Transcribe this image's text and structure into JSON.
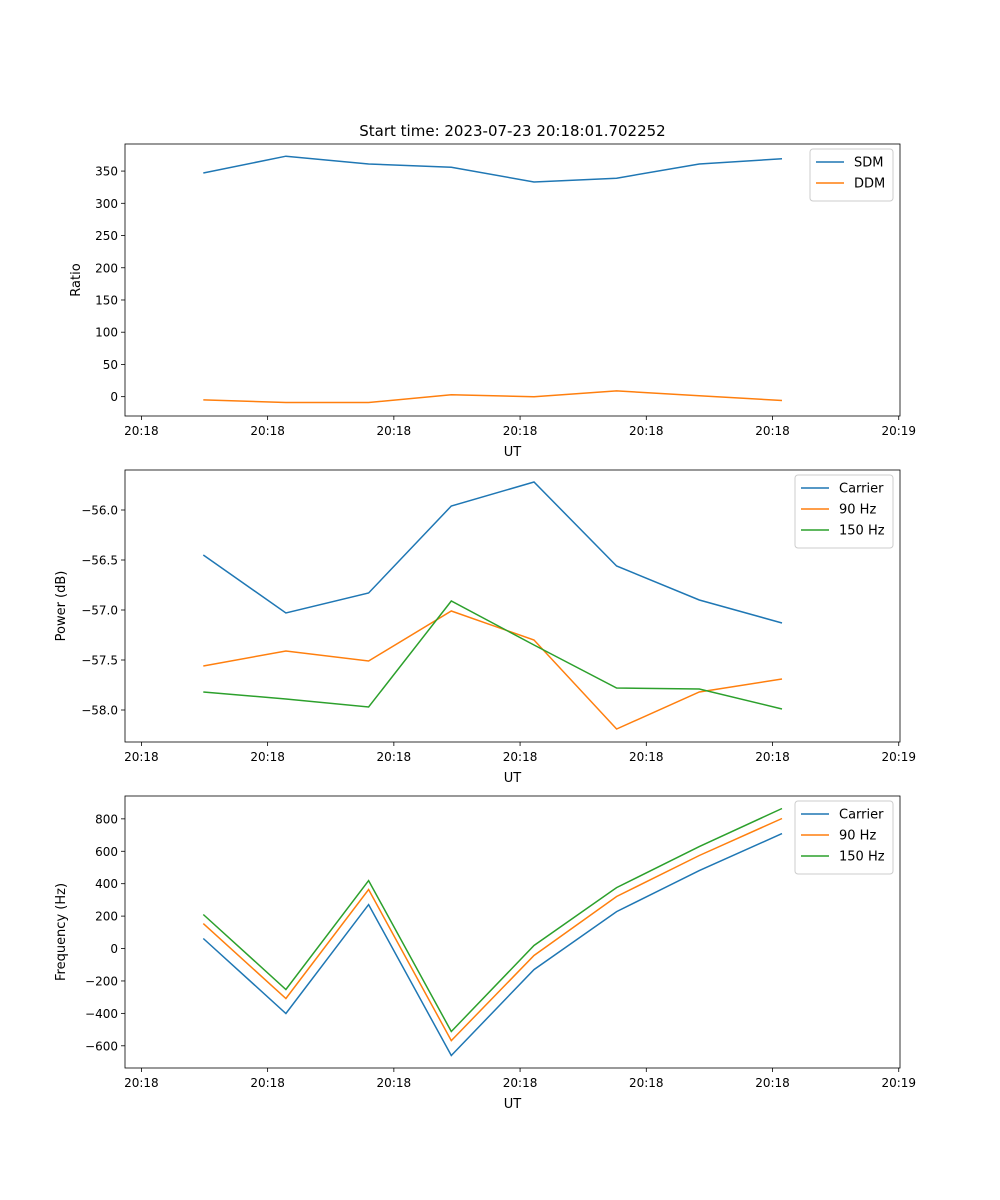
{
  "chart_data": [
    {
      "type": "line",
      "title": "Start time: 2023-07-23 20:18:01.702252",
      "xlabel": "UT",
      "ylabel": "Ratio",
      "x": [
        4.9,
        11.45,
        18.0,
        24.55,
        31.1,
        37.65,
        44.2,
        50.75
      ],
      "xlim": [
        -1.3,
        60.1
      ],
      "xticks": [
        0,
        10,
        20,
        30,
        40,
        50,
        60
      ],
      "xtick_labels": [
        "20:18",
        "20:18",
        "20:18",
        "20:18",
        "20:18",
        "20:18",
        "20:19"
      ],
      "ylim": [
        -30,
        392
      ],
      "yticks": [
        0,
        50,
        100,
        150,
        200,
        250,
        300,
        350
      ],
      "ytick_labels": [
        "0",
        "50",
        "100",
        "150",
        "200",
        "250",
        "300",
        "350"
      ],
      "legend": "top-right",
      "series": [
        {
          "name": "SDM",
          "color": "#1f77b4",
          "values": [
            347,
            373,
            361,
            356,
            333,
            339,
            361,
            369
          ]
        },
        {
          "name": "DDM",
          "color": "#ff7f0e",
          "values": [
            -5,
            -9,
            -9,
            3,
            0,
            9,
            1.5,
            -6
          ]
        }
      ]
    },
    {
      "type": "line",
      "title": "",
      "xlabel": "UT",
      "ylabel": "Power (dB)",
      "x": [
        4.9,
        11.45,
        18.0,
        24.55,
        31.1,
        37.65,
        44.2,
        50.75
      ],
      "xlim": [
        -1.3,
        60.1
      ],
      "xticks": [
        0,
        10,
        20,
        30,
        40,
        50,
        60
      ],
      "xtick_labels": [
        "20:18",
        "20:18",
        "20:18",
        "20:18",
        "20:18",
        "20:18",
        "20:19"
      ],
      "ylim": [
        -58.32,
        -55.6
      ],
      "yticks": [
        -58.0,
        -57.5,
        -57.0,
        -56.5,
        -56.0
      ],
      "ytick_labels": [
        "−58.0",
        "−57.5",
        "−57.0",
        "−56.5",
        "−56.0"
      ],
      "legend": "top-right",
      "series": [
        {
          "name": "Carrier",
          "color": "#1f77b4",
          "values": [
            -56.45,
            -57.03,
            -56.83,
            -55.96,
            -55.72,
            -56.56,
            -56.9,
            -57.13
          ]
        },
        {
          "name": "90 Hz",
          "color": "#ff7f0e",
          "values": [
            -57.56,
            -57.41,
            -57.51,
            -57.01,
            -57.3,
            -58.19,
            -57.82,
            -57.69
          ]
        },
        {
          "name": "150 Hz",
          "color": "#2ca02c",
          "values": [
            -57.82,
            -57.89,
            -57.97,
            -56.91,
            -57.35,
            -57.78,
            -57.79,
            -57.99
          ]
        }
      ]
    },
    {
      "type": "line",
      "title": "",
      "xlabel": "UT",
      "ylabel": "Frequency (Hz)",
      "x": [
        4.9,
        11.45,
        18.0,
        24.55,
        31.1,
        37.65,
        44.2,
        50.75
      ],
      "xlim": [
        -1.3,
        60.1
      ],
      "xticks": [
        0,
        10,
        20,
        30,
        40,
        50,
        60
      ],
      "xtick_labels": [
        "20:18",
        "20:18",
        "20:18",
        "20:18",
        "20:18",
        "20:18",
        "20:19"
      ],
      "ylim": [
        -737,
        941
      ],
      "yticks": [
        -600,
        -400,
        -200,
        0,
        200,
        400,
        600,
        800
      ],
      "ytick_labels": [
        "−600",
        "−400",
        "−200",
        "0",
        "200",
        "400",
        "600",
        "800"
      ],
      "legend": "top-right",
      "series": [
        {
          "name": "Carrier",
          "color": "#1f77b4",
          "values": [
            62,
            -401,
            271,
            -660,
            -130,
            228,
            481,
            709
          ]
        },
        {
          "name": "90 Hz",
          "color": "#ff7f0e",
          "values": [
            154,
            -308,
            364,
            -568,
            -43,
            321,
            574,
            802
          ]
        },
        {
          "name": "150 Hz",
          "color": "#2ca02c",
          "values": [
            210,
            -253,
            419,
            -512,
            19,
            376,
            629,
            864
          ]
        }
      ]
    }
  ]
}
